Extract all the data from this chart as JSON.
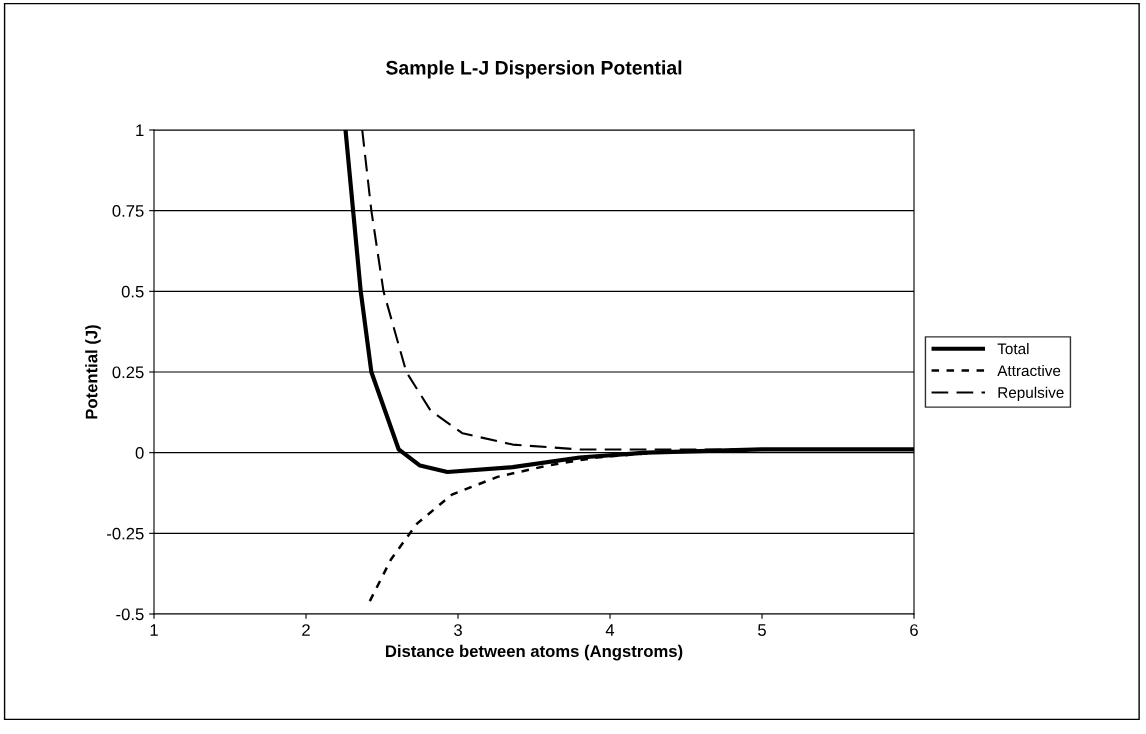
{
  "chart_data": {
    "type": "line",
    "title": "Sample L-J Dispersion Potential",
    "xlabel": "Distance between atoms (Angstroms)",
    "ylabel": "Potential (J)",
    "xlim": [
      1,
      6
    ],
    "xticks": [
      1,
      2,
      3,
      4,
      5,
      6
    ],
    "ylim": [
      -0.5,
      1
    ],
    "yticks": [
      -0.5,
      -0.25,
      0,
      0.25,
      0.5,
      0.75,
      1
    ],
    "grid": "y",
    "legend": "right",
    "marker": "none",
    "series": [
      {
        "name": "Total",
        "color": "#000000",
        "line_style": "solid",
        "x": [
          2.26,
          2.36,
          2.43,
          2.61,
          2.75,
          2.93,
          3.36,
          3.8,
          4.24,
          5,
          6
        ],
        "values": [
          1,
          0.5,
          0.25,
          0.01,
          -0.04,
          -0.06,
          -0.045,
          -0.015,
          0,
          0.01,
          0.01
        ]
      },
      {
        "name": "Attractive",
        "color": "#000000",
        "line_style": "dotted",
        "x": [
          2.42,
          2.56,
          2.73,
          2.96,
          3.26,
          3.59,
          3.91,
          4.3
        ],
        "values": [
          -0.46,
          -0.33,
          -0.22,
          -0.13,
          -0.075,
          -0.04,
          -0.015,
          0
        ]
      },
      {
        "name": "Repulsive",
        "color": "#000000",
        "line_style": "dashed",
        "x": [
          2.37,
          2.43,
          2.51,
          2.66,
          2.82,
          3.03,
          3.36,
          3.8,
          5,
          6
        ],
        "values": [
          1,
          0.75,
          0.5,
          0.25,
          0.13,
          0.06,
          0.025,
          0.01,
          0.01,
          0.01
        ]
      }
    ]
  }
}
